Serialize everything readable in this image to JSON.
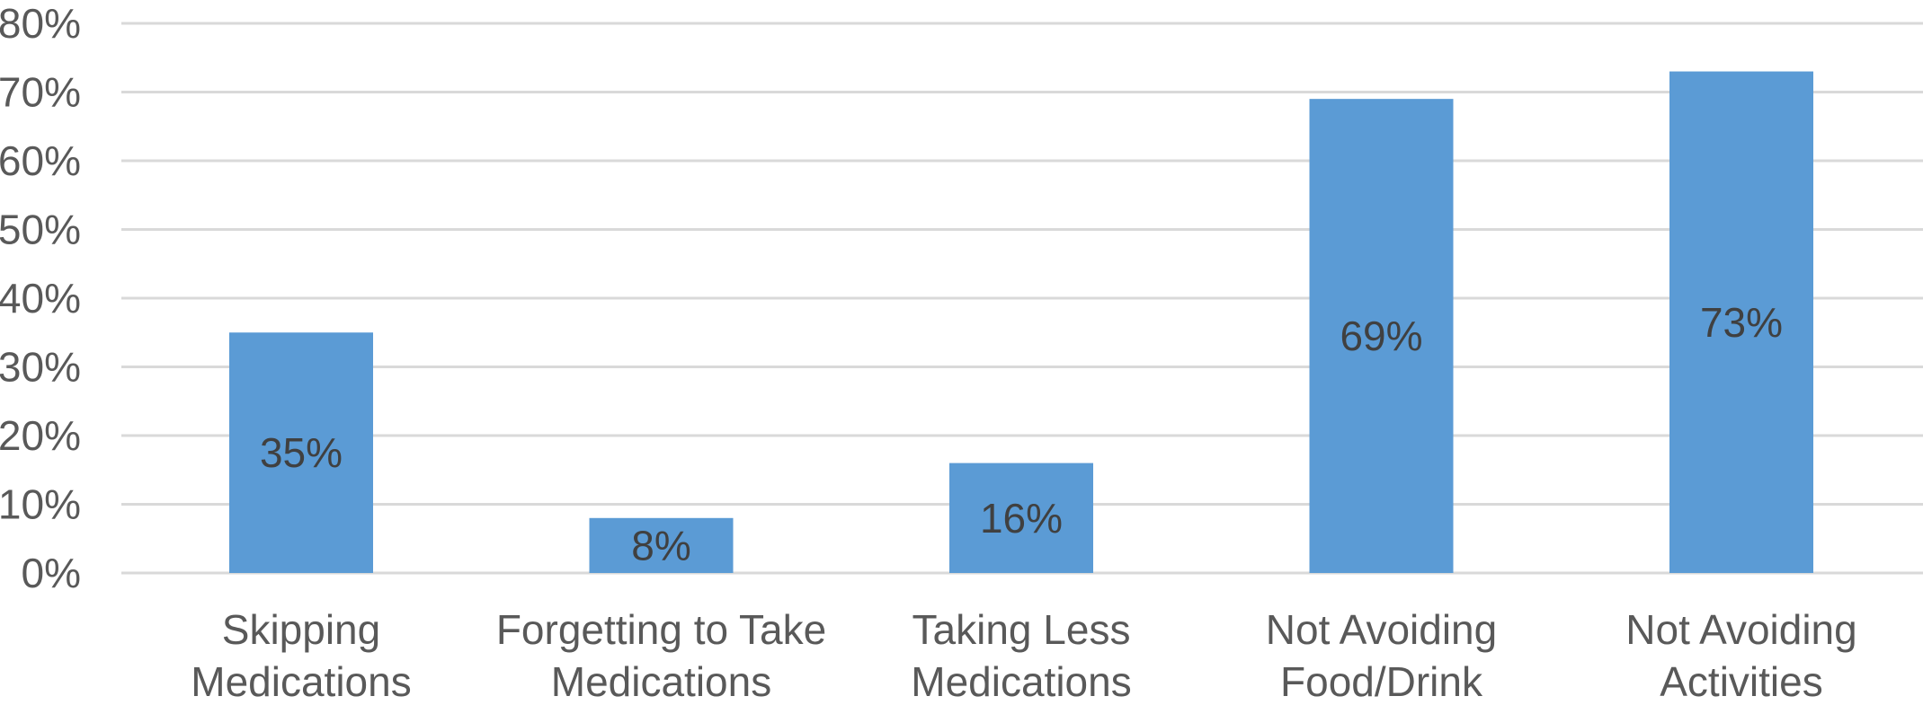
{
  "chart_data": {
    "type": "bar",
    "categories": [
      [
        "Skipping",
        "Medications"
      ],
      [
        "Forgetting to Take",
        "Medications"
      ],
      [
        "Taking Less",
        "Medications"
      ],
      [
        "Not Avoiding",
        "Food/Drink"
      ],
      [
        "Not Avoiding",
        "Activities"
      ]
    ],
    "values": [
      35,
      8,
      16,
      69,
      73
    ],
    "value_labels": [
      "35%",
      "8%",
      "16%",
      "69%",
      "73%"
    ],
    "yticks": [
      "0%",
      "10%",
      "20%",
      "30%",
      "40%",
      "50%",
      "60%",
      "70%",
      "80%"
    ],
    "ylim": [
      0,
      80
    ],
    "grid": true,
    "title": "",
    "xlabel": "",
    "ylabel": "",
    "colors": {
      "bar": "#5B9BD5",
      "grid": "#D9D9D9"
    }
  }
}
